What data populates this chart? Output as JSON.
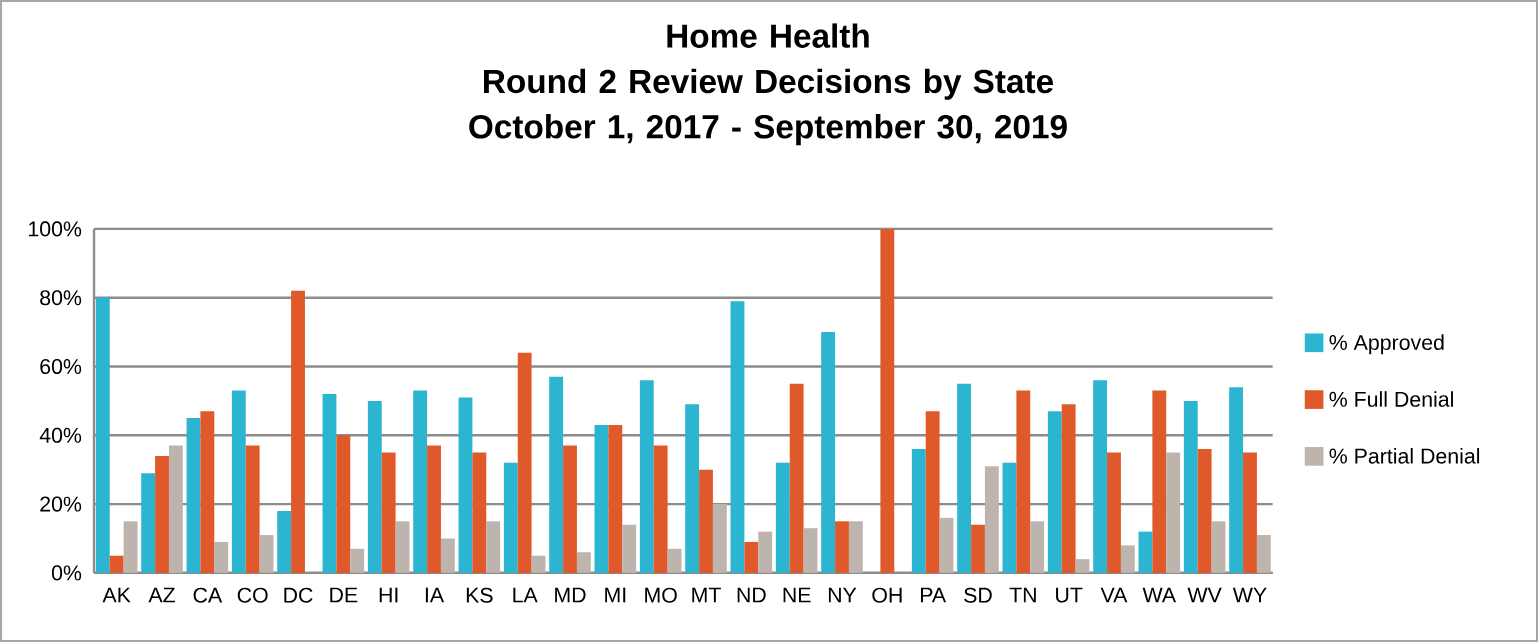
{
  "chart_data": {
    "type": "bar",
    "title": "Home Health",
    "subtitle": "Round 2 Review Decisions by State October 1, 2017 - September 30, 2019",
    "categories": [
      "AK",
      "AZ",
      "CA",
      "CO",
      "DC",
      "DE",
      "HI",
      "IA",
      "KS",
      "LA",
      "MD",
      "MI",
      "MO",
      "MT",
      "ND",
      "NE",
      "NY",
      "OH",
      "PA",
      "SD",
      "TN",
      "UT",
      "VA",
      "WA",
      "WV",
      "WY"
    ],
    "series": [
      {
        "name": "% Approved",
        "color": "#2bb5d0",
        "values": [
          80,
          29,
          45,
          53,
          18,
          52,
          50,
          53,
          51,
          32,
          57,
          43,
          56,
          49,
          79,
          32,
          70,
          0,
          36,
          55,
          32,
          47,
          56,
          12,
          50,
          54
        ]
      },
      {
        "name": "% Full Denial",
        "color": "#e0592a",
        "values": [
          5,
          34,
          47,
          37,
          82,
          40,
          35,
          37,
          35,
          64,
          37,
          43,
          37,
          30,
          9,
          55,
          15,
          100,
          47,
          14,
          53,
          49,
          35,
          53,
          36,
          35
        ]
      },
      {
        "name": "% Partial Denial",
        "color": "#bcb4ad",
        "values": [
          15,
          37,
          9,
          11,
          0,
          7,
          15,
          10,
          15,
          5,
          6,
          14,
          7,
          20,
          12,
          13,
          15,
          0,
          16,
          31,
          15,
          4,
          8,
          35,
          15,
          11
        ]
      }
    ],
    "ylim": [
      0,
      100
    ],
    "yticks": [
      {
        "value": 0,
        "label": "0%"
      },
      {
        "value": 20,
        "label": "20%"
      },
      {
        "value": 40,
        "label": "40%"
      },
      {
        "value": 60,
        "label": "60%"
      },
      {
        "value": 80,
        "label": "80%"
      },
      {
        "value": 100,
        "label": "100%"
      }
    ],
    "grid": "y",
    "legend": "right"
  }
}
